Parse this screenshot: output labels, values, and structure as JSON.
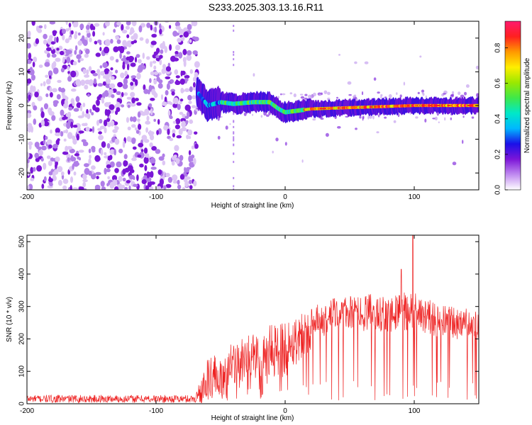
{
  "title": "S233.2025.303.13.16.R11",
  "chart_data": [
    {
      "type": "heatmap",
      "name": "spectrogram",
      "xlabel": "Height of straight line (km)",
      "ylabel": "Frequency (Hz)",
      "xlim": [
        -200,
        150
      ],
      "ylim": [
        -25,
        25
      ],
      "xticks": [
        -200,
        -100,
        0,
        100
      ],
      "yticks": [
        -20,
        -10,
        0,
        10,
        20
      ],
      "signal_start_x": -68,
      "signal_ridge": [
        {
          "x": -68,
          "f": 4
        },
        {
          "x": -60,
          "f": 0
        },
        {
          "x": -50,
          "f": 1
        },
        {
          "x": -40,
          "f": 0.5
        },
        {
          "x": -25,
          "f": 1
        },
        {
          "x": -12,
          "f": 1
        },
        {
          "x": -5,
          "f": -1
        },
        {
          "x": 0,
          "f": -2
        },
        {
          "x": 10,
          "f": -1.5
        },
        {
          "x": 20,
          "f": -1
        },
        {
          "x": 60,
          "f": -0.5
        },
        {
          "x": 100,
          "f": 0
        },
        {
          "x": 150,
          "f": 0
        }
      ],
      "colorbar": {
        "label": "Normalized spectral amplitude",
        "min": 0.0,
        "max": 0.95,
        "ticks": [
          0.0,
          0.2,
          0.4,
          0.6,
          0.8
        ],
        "tick_labels": [
          "0.0",
          "0.2",
          "0.4",
          "0.6",
          "0.8"
        ],
        "colors": [
          "#ffffff",
          "#c08af0",
          "#7c15d8",
          "#1a10e8",
          "#00b8ff",
          "#00e8c8",
          "#3ee84a",
          "#9be800",
          "#ffee00",
          "#ff9900",
          "#ff2020",
          "#ff1a6e"
        ]
      }
    },
    {
      "type": "line",
      "name": "snr",
      "xlabel": "Height of straight line (km)",
      "ylabel": "SNR (10 * v/v)",
      "xlim": [
        -200,
        150
      ],
      "ylim": [
        0,
        520
      ],
      "xticks": [
        -200,
        -100,
        0,
        100
      ],
      "yticks": [
        0,
        100,
        200,
        300,
        400,
        500
      ],
      "color": "#ee2222",
      "envelope": [
        {
          "x": -200,
          "base": 15,
          "amp": 12
        },
        {
          "x": -70,
          "base": 15,
          "amp": 12
        },
        {
          "x": -60,
          "base": 70,
          "amp": 70
        },
        {
          "x": -40,
          "base": 110,
          "amp": 80
        },
        {
          "x": -20,
          "base": 150,
          "amp": 80
        },
        {
          "x": 0,
          "base": 170,
          "amp": 90
        },
        {
          "x": 15,
          "base": 220,
          "amp": 70
        },
        {
          "x": 40,
          "base": 280,
          "amp": 50
        },
        {
          "x": 70,
          "base": 280,
          "amp": 60
        },
        {
          "x": 100,
          "base": 285,
          "amp": 60
        },
        {
          "x": 120,
          "base": 255,
          "amp": 50
        },
        {
          "x": 150,
          "base": 240,
          "amp": 50
        }
      ],
      "peak": {
        "x": 99,
        "y": 520
      }
    }
  ]
}
